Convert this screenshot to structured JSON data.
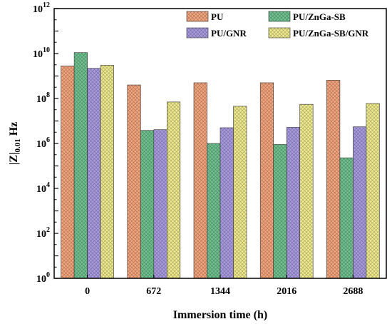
{
  "chart_data": {
    "type": "bar",
    "xlabel": "Immersion time (h)",
    "ylabel_main": "|Z|",
    "ylabel_sub": "0.01",
    "ylabel_unit": " Hz",
    "yscale": "log",
    "ylim": [
      1,
      1000000000000
    ],
    "y_ticks": [
      {
        "base": "10",
        "exp": "0"
      },
      {
        "base": "10",
        "exp": "2"
      },
      {
        "base": "10",
        "exp": "4"
      },
      {
        "base": "10",
        "exp": "6"
      },
      {
        "base": "10",
        "exp": "8"
      },
      {
        "base": "10",
        "exp": "10"
      },
      {
        "base": "10",
        "exp": "12"
      }
    ],
    "categories": [
      "0",
      "672",
      "1344",
      "2016",
      "2688"
    ],
    "legend_position": "top-right",
    "series": [
      {
        "name": "PU",
        "color": "#F3A57D",
        "values": [
          2800000000,
          400000000,
          500000000,
          500000000,
          650000000
        ]
      },
      {
        "name": "PU/ZnGa-SB",
        "color": "#6FC18F",
        "values": [
          11000000000,
          3800000,
          1000000,
          900000,
          230000
        ]
      },
      {
        "name": "PU/GNR",
        "color": "#A99BE0",
        "values": [
          2200000000,
          4100000,
          5000000,
          5200000,
          5500000
        ]
      },
      {
        "name": "PU/ZnGa-SB/GNR",
        "color": "#EFEA8E",
        "values": [
          3000000000,
          70000000,
          45000000,
          55000000,
          60000000
        ]
      }
    ]
  }
}
